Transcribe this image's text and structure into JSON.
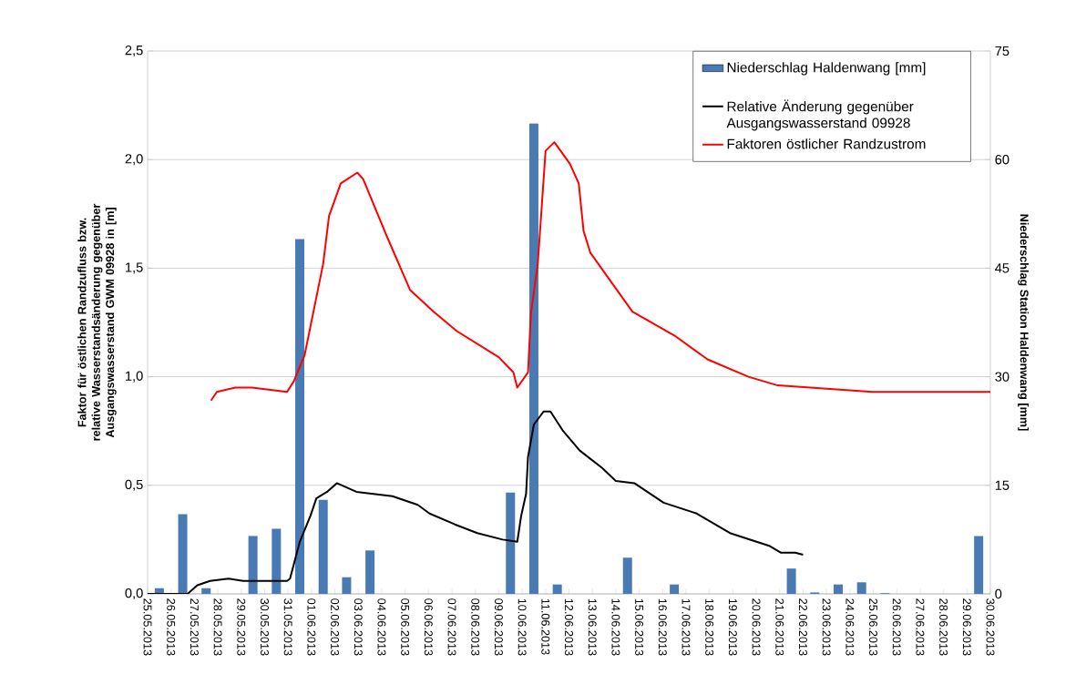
{
  "chart_data": {
    "type": "line",
    "ylabel": "Faktor für östlichen Randzufluss bzw. relative Wasserstandsänderung gegenüber Ausgangswasserstand   GWM 09928 in [m]",
    "y2label": "Niederschlag Station Haldenwang [mm]",
    "xlim": [
      "2013-05-25",
      "2013-06-30"
    ],
    "xticks": [
      {
        "value": "2013-05-25",
        "label": "25.05.2013"
      },
      {
        "value": "2013-05-26",
        "label": "26.05.2013"
      },
      {
        "value": "2013-05-27",
        "label": "27.05.2013"
      },
      {
        "value": "2013-05-28",
        "label": "28.05.2013"
      },
      {
        "value": "2013-05-29",
        "label": "29.05.2013"
      },
      {
        "value": "2013-05-30",
        "label": "30.05.2013"
      },
      {
        "value": "2013-05-31",
        "label": "31.05.2013"
      },
      {
        "value": "2013-06-01",
        "label": "01.06.2013"
      },
      {
        "value": "2013-06-02",
        "label": "02.06.2013"
      },
      {
        "value": "2013-06-03",
        "label": "03.06.2013"
      },
      {
        "value": "2013-06-04",
        "label": "04.06.2013"
      },
      {
        "value": "2013-06-05",
        "label": "05.06.2013"
      },
      {
        "value": "2013-06-06",
        "label": "06.06.2013"
      },
      {
        "value": "2013-06-07",
        "label": "07.06.2013"
      },
      {
        "value": "2013-06-08",
        "label": "08.06.2013"
      },
      {
        "value": "2013-06-09",
        "label": "09.06.2013"
      },
      {
        "value": "2013-06-10",
        "label": "10.06.2013"
      },
      {
        "value": "2013-06-11",
        "label": "11.06.2013"
      },
      {
        "value": "2013-06-12",
        "label": "12.06.2013"
      },
      {
        "value": "2013-06-13",
        "label": "13.06.2013"
      },
      {
        "value": "2013-06-14",
        "label": "14.06.2013"
      },
      {
        "value": "2013-06-15",
        "label": "15.06.2013"
      },
      {
        "value": "2013-06-16",
        "label": "16.06.2013"
      },
      {
        "value": "2013-06-17",
        "label": "17.06.2013"
      },
      {
        "value": "2013-06-18",
        "label": "18.06.2013"
      },
      {
        "value": "2013-06-19",
        "label": "19.06.2013"
      },
      {
        "value": "2013-06-20",
        "label": "20.06.2013"
      },
      {
        "value": "2013-06-21",
        "label": "21.06.2013"
      },
      {
        "value": "2013-06-22",
        "label": "22.06.2013"
      },
      {
        "value": "2013-06-23",
        "label": "23.06.2013"
      },
      {
        "value": "2013-06-24",
        "label": "24.06.2013"
      },
      {
        "value": "2013-06-25",
        "label": "25.06.2013"
      },
      {
        "value": "2013-06-26",
        "label": "26.06.2013"
      },
      {
        "value": "2013-06-27",
        "label": "27.06.2013"
      },
      {
        "value": "2013-06-28",
        "label": "28.06.2013"
      },
      {
        "value": "2013-06-29",
        "label": "29.06.2013"
      },
      {
        "value": "2013-06-30",
        "label": "30.06.2013"
      }
    ],
    "ylim": [
      0,
      2.5
    ],
    "yticks": [
      {
        "value": 0,
        "label": "0,0"
      },
      {
        "value": 0.5,
        "label": "0,5"
      },
      {
        "value": 1,
        "label": "1,0"
      },
      {
        "value": 1.5,
        "label": "1,5"
      },
      {
        "value": 2,
        "label": "2,0"
      },
      {
        "value": 2.5,
        "label": "2,5"
      }
    ],
    "y2lim": [
      0,
      75
    ],
    "y2ticks": [
      0,
      15,
      30,
      45,
      60,
      75
    ],
    "grid": "y",
    "legend": "top right",
    "series": [
      {
        "name": "Niederschlag Haldenwang [mm]",
        "type": "bar",
        "axis": "y2",
        "color": "#4a7ab4",
        "x": [
          "2013-05-25T12:00",
          "2013-05-26T12:00",
          "2013-05-27T12:00",
          "2013-05-29T12:00",
          "2013-05-30T12:00",
          "2013-05-31T12:00",
          "2013-06-01T12:00",
          "2013-06-02T12:00",
          "2013-06-03T12:00",
          "2013-06-09T12:00",
          "2013-06-10T12:00",
          "2013-06-11T12:00",
          "2013-06-14T12:00",
          "2013-06-16T12:00",
          "2013-06-21T12:00",
          "2013-06-22T12:00",
          "2013-06-23T12:00",
          "2013-06-24T12:00",
          "2013-06-25T12:00",
          "2013-06-29T12:00"
        ],
        "values": [
          0.8,
          11,
          0.8,
          8,
          9,
          49,
          13,
          2.3,
          6,
          14,
          65,
          1.3,
          5,
          1.3,
          3.5,
          0.2,
          1.3,
          1.6,
          0.1,
          8
        ]
      },
      {
        "name": "Relative Änderung gegenüber Ausgangswasserstand 09928",
        "color": "#000000",
        "x": [
          "2013-05-25T00:00",
          "2013-05-25T21:00",
          "2013-05-26T17:00",
          "2013-05-27T03:00",
          "2013-05-27T16:00",
          "2013-05-28T11:00",
          "2013-05-29T02:00",
          "2013-05-30T23:00",
          "2013-05-31T02:00",
          "2013-05-31T12:00",
          "2013-05-31T23:00",
          "2013-06-01T05:00",
          "2013-06-01T16:00",
          "2013-06-02T02:00",
          "2013-06-02T22:00",
          "2013-06-04T11:00",
          "2013-06-05T13:00",
          "2013-06-06T01:00",
          "2013-06-07T03:00",
          "2013-06-08T02:00",
          "2013-06-09T04:00",
          "2013-06-09T19:00",
          "2013-06-09T23:00",
          "2013-06-10T04:00",
          "2013-06-10T06:00",
          "2013-06-10T12:00",
          "2013-06-10T22:00",
          "2013-06-11T05:00",
          "2013-06-11T18:00",
          "2013-06-12T11:00",
          "2013-06-13T10:00",
          "2013-06-14T00:00",
          "2013-06-14T19:00",
          "2013-06-16T01:00",
          "2013-06-17T11:00",
          "2013-06-18T21:00",
          "2013-06-20T14:00",
          "2013-06-21T01:00",
          "2013-06-21T16:00",
          "2013-06-22T00:00"
        ],
        "values": [
          0,
          0,
          0,
          0.04,
          0.06,
          0.07,
          0.06,
          0.06,
          0.07,
          0.24,
          0.36,
          0.44,
          0.47,
          0.51,
          0.47,
          0.45,
          0.41,
          0.37,
          0.32,
          0.28,
          0.25,
          0.24,
          0.36,
          0.46,
          0.63,
          0.78,
          0.84,
          0.84,
          0.75,
          0.66,
          0.58,
          0.52,
          0.51,
          0.42,
          0.37,
          0.28,
          0.22,
          0.19,
          0.19,
          0.18
        ]
      },
      {
        "name": "Faktoren östlicher Randzustrom",
        "color": "#ff0000",
        "x": [
          "2013-05-27T17:00",
          "2013-05-27T23:00",
          "2013-05-28T18:00",
          "2013-05-29T11:00",
          "2013-05-30T23:00",
          "2013-05-31T06:00",
          "2013-05-31T17:00",
          "2013-06-01T12:00",
          "2013-06-01T18:00",
          "2013-06-02T06:00",
          "2013-06-02T23:00",
          "2013-06-03T05:00",
          "2013-06-04T04:00",
          "2013-06-05T05:00",
          "2013-06-06T05:00",
          "2013-06-07T05:00",
          "2013-06-09T00:00",
          "2013-06-09T15:00",
          "2013-06-09T19:00",
          "2013-06-10T06:00",
          "2013-06-10T09:00",
          "2013-06-10T16:00",
          "2013-06-11T00:00",
          "2013-06-11T09:00",
          "2013-06-12T01:00",
          "2013-06-12T10:00",
          "2013-06-12T15:00",
          "2013-06-12T22:00",
          "2013-06-14T17:00",
          "2013-06-16T12:00",
          "2013-06-17T22:00",
          "2013-06-19T16:00",
          "2013-06-20T22:00",
          "2013-06-24T23:00",
          "2013-06-30T00:00"
        ],
        "values": [
          0.89,
          0.93,
          0.95,
          0.95,
          0.93,
          0.98,
          1.1,
          1.52,
          1.74,
          1.89,
          1.94,
          1.91,
          1.66,
          1.4,
          1.3,
          1.21,
          1.09,
          1.02,
          0.95,
          1.02,
          1.29,
          1.52,
          2.04,
          2.08,
          1.98,
          1.89,
          1.67,
          1.57,
          1.3,
          1.19,
          1.08,
          1.0,
          0.96,
          0.93,
          0.93
        ]
      }
    ]
  }
}
